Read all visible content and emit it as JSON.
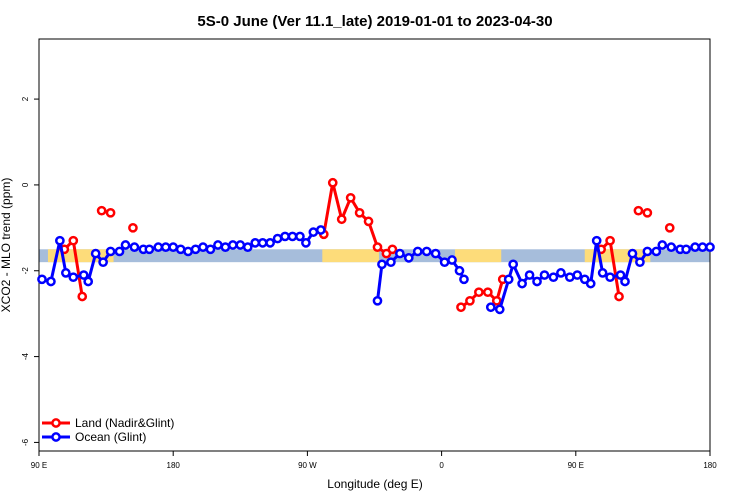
{
  "chart_data": {
    "type": "line",
    "title": "5S-0 June (Ver 11.1_late)   2019-01-01 to 2023-04-30",
    "xlabel": "Longitude (deg E)",
    "ylabel": "XCO2 - MLO trend (ppm)",
    "xlim": [
      0,
      450
    ],
    "ylim": [
      -6.2,
      3.4
    ],
    "xticks": [
      {
        "value": 0,
        "label": "90 E"
      },
      {
        "value": 90,
        "label": "180"
      },
      {
        "value": 180,
        "label": "90 W"
      },
      {
        "value": 270,
        "label": "0"
      },
      {
        "value": 360,
        "label": "90 E"
      },
      {
        "value": 450,
        "label": "180"
      }
    ],
    "yticks": [
      {
        "value": 2,
        "label": "2"
      },
      {
        "value": 0,
        "label": "0"
      },
      {
        "value": -2,
        "label": "-2"
      },
      {
        "value": -4,
        "label": "-4"
      },
      {
        "value": -6,
        "label": "-6"
      }
    ],
    "band": {
      "y_low": -1.8,
      "y_high": -1.5,
      "ocean_color": "#a6bddb",
      "land_color": "#fddc7a",
      "land_ranges": [
        [
          6,
          50
        ],
        [
          190,
          228
        ],
        [
          279,
          310
        ],
        [
          366,
          410
        ]
      ]
    },
    "legend": {
      "position": "bottom-left",
      "entries": [
        {
          "name": "Land (Nadir&Glint)",
          "color": "#ff0000"
        },
        {
          "name": "Ocean (Glint)",
          "color": "#0000ff"
        }
      ]
    },
    "series": [
      {
        "name": "Land (Nadir&Glint)",
        "color": "#ff0000",
        "segments": [
          [
            [
              17,
              -1.5
            ],
            [
              23,
              -1.3
            ],
            [
              29,
              -2.6
            ]
          ],
          [
            [
              42,
              -0.6
            ],
            [
              48,
              -0.65
            ]
          ],
          [
            [
              63,
              -1.0
            ]
          ],
          [
            [
              191,
              -1.15
            ],
            [
              197,
              0.05
            ],
            [
              203,
              -0.8
            ],
            [
              209,
              -0.3
            ],
            [
              215,
              -0.65
            ],
            [
              221,
              -0.85
            ],
            [
              227,
              -1.45
            ],
            [
              233,
              -1.6
            ],
            [
              237,
              -1.5
            ]
          ],
          [
            [
              283,
              -2.85
            ],
            [
              289,
              -2.7
            ],
            [
              295,
              -2.5
            ],
            [
              301,
              -2.5
            ],
            [
              307,
              -2.7
            ],
            [
              311,
              -2.2
            ]
          ],
          [
            [
              377,
              -1.5
            ],
            [
              383,
              -1.3
            ],
            [
              389,
              -2.6
            ]
          ],
          [
            [
              402,
              -0.6
            ],
            [
              408,
              -0.65
            ]
          ],
          [
            [
              423,
              -1.0
            ]
          ]
        ]
      },
      {
        "name": "Ocean (Glint)",
        "color": "#0000ff",
        "segments": [
          [
            [
              2,
              -2.2
            ],
            [
              8,
              -2.25
            ],
            [
              14,
              -1.3
            ],
            [
              18,
              -2.05
            ],
            [
              23,
              -2.15
            ],
            [
              30,
              -2.1
            ],
            [
              33,
              -2.25
            ],
            [
              38,
              -1.6
            ],
            [
              43,
              -1.8
            ],
            [
              48,
              -1.55
            ],
            [
              54,
              -1.55
            ],
            [
              58,
              -1.4
            ],
            [
              64,
              -1.45
            ],
            [
              70,
              -1.5
            ],
            [
              74,
              -1.5
            ],
            [
              80,
              -1.45
            ],
            [
              85,
              -1.45
            ],
            [
              90,
              -1.45
            ],
            [
              95,
              -1.5
            ],
            [
              100,
              -1.55
            ],
            [
              105,
              -1.5
            ],
            [
              110,
              -1.45
            ],
            [
              115,
              -1.5
            ],
            [
              120,
              -1.4
            ],
            [
              125,
              -1.45
            ],
            [
              130,
              -1.4
            ],
            [
              135,
              -1.4
            ],
            [
              140,
              -1.45
            ],
            [
              145,
              -1.35
            ],
            [
              150,
              -1.35
            ],
            [
              155,
              -1.35
            ],
            [
              160,
              -1.25
            ],
            [
              165,
              -1.2
            ],
            [
              170,
              -1.2
            ],
            [
              175,
              -1.2
            ],
            [
              179,
              -1.35
            ],
            [
              184,
              -1.1
            ],
            [
              189,
              -1.05
            ]
          ],
          [
            [
              227,
              -2.7
            ],
            [
              230,
              -1.85
            ],
            [
              236,
              -1.8
            ],
            [
              242,
              -1.6
            ],
            [
              248,
              -1.7
            ],
            [
              254,
              -1.55
            ],
            [
              260,
              -1.55
            ],
            [
              266,
              -1.6
            ],
            [
              272,
              -1.8
            ],
            [
              277,
              -1.75
            ],
            [
              282,
              -2.0
            ],
            [
              285,
              -2.2
            ]
          ],
          [
            [
              303,
              -2.85
            ],
            [
              309,
              -2.9
            ],
            [
              315,
              -2.2
            ],
            [
              318,
              -1.85
            ],
            [
              324,
              -2.3
            ],
            [
              329,
              -2.1
            ],
            [
              334,
              -2.25
            ],
            [
              339,
              -2.1
            ],
            [
              345,
              -2.15
            ],
            [
              350,
              -2.05
            ],
            [
              356,
              -2.15
            ],
            [
              361,
              -2.1
            ],
            [
              366,
              -2.2
            ],
            [
              370,
              -2.3
            ],
            [
              374,
              -1.3
            ],
            [
              378,
              -2.05
            ],
            [
              383,
              -2.15
            ],
            [
              390,
              -2.1
            ],
            [
              393,
              -2.25
            ],
            [
              398,
              -1.6
            ],
            [
              403,
              -1.8
            ],
            [
              408,
              -1.55
            ],
            [
              414,
              -1.55
            ],
            [
              418,
              -1.4
            ],
            [
              424,
              -1.45
            ],
            [
              430,
              -1.5
            ],
            [
              434,
              -1.5
            ],
            [
              440,
              -1.45
            ],
            [
              445,
              -1.45
            ],
            [
              450,
              -1.45
            ]
          ]
        ]
      }
    ]
  }
}
